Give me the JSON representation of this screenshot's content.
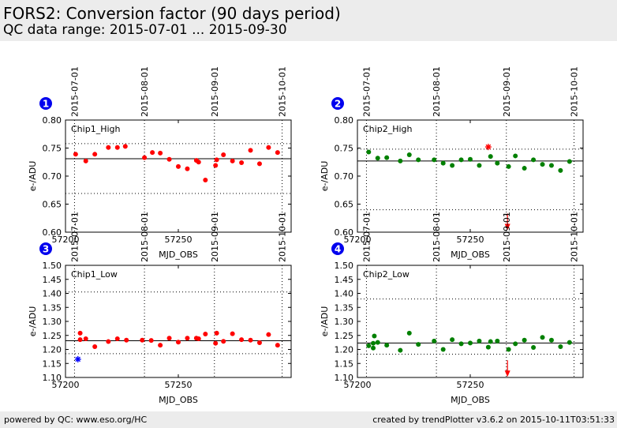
{
  "header": {
    "title": "FORS2: Conversion factor (90 days period)",
    "subtitle": "QC data range: 2015-07-01 ... 2015-09-30"
  },
  "footer": {
    "left": "powered by QC: www.eso.org/HC",
    "right": "created by trendPlotter v3.6.2 on 2015-10-11T03:51:33"
  },
  "colors": {
    "chip1": "#ff0000",
    "chip2": "#008000",
    "badge": "#0000ee",
    "outlier_red": "#ff0000",
    "outlier_blue": "#0000ff"
  },
  "chart_data": [
    {
      "type": "scatter",
      "badge": "1",
      "panel_label": "Chip1_High",
      "xlabel": "MJD_OBS",
      "ylabel": "e-/ADU",
      "xlim": [
        57200,
        57300
      ],
      "ylim": [
        0.6,
        0.8
      ],
      "yticks": [
        0.6,
        0.65,
        0.7,
        0.75,
        0.8
      ],
      "ytick_labels": [
        "0.60",
        "0.65",
        "0.70",
        "0.75",
        "0.80"
      ],
      "xticks": [
        57200,
        57250
      ],
      "xtick_labels": [
        "57200",
        "57250"
      ],
      "date_ticks": [
        {
          "label": "2015-07-01",
          "mjd": 57204
        },
        {
          "label": "2015-08-01",
          "mjd": 57235
        },
        {
          "label": "2015-09-01",
          "mjd": 57266
        },
        {
          "label": "2015-10-01",
          "mjd": 57296
        }
      ],
      "median": 0.731,
      "limits": [
        0.669,
        0.758
      ],
      "points_color": "#ff0000",
      "points": [
        [
          57204.5,
          0.739
        ],
        [
          57209,
          0.727
        ],
        [
          57213,
          0.739
        ],
        [
          57219,
          0.751
        ],
        [
          57223,
          0.751
        ],
        [
          57226.5,
          0.753
        ],
        [
          57235,
          0.733
        ],
        [
          57238.5,
          0.742
        ],
        [
          57242,
          0.741
        ],
        [
          57246,
          0.73
        ],
        [
          57250,
          0.717
        ],
        [
          57254,
          0.713
        ],
        [
          57258,
          0.728
        ],
        [
          57259,
          0.725
        ],
        [
          57262,
          0.693
        ],
        [
          57266.5,
          0.719
        ],
        [
          57267,
          0.729
        ],
        [
          57270,
          0.738
        ],
        [
          57274,
          0.727
        ],
        [
          57278,
          0.724
        ],
        [
          57282,
          0.746
        ],
        [
          57286,
          0.722
        ],
        [
          57290,
          0.751
        ],
        [
          57294,
          0.742
        ]
      ],
      "outliers": []
    },
    {
      "type": "scatter",
      "badge": "2",
      "panel_label": "Chip2_High",
      "xlabel": "MJD_OBS",
      "ylabel": "e-/ADU",
      "xlim": [
        57200,
        57300
      ],
      "ylim": [
        0.6,
        0.8
      ],
      "yticks": [
        0.6,
        0.65,
        0.7,
        0.75,
        0.8
      ],
      "ytick_labels": [
        "0.60",
        "0.65",
        "0.70",
        "0.75",
        "0.80"
      ],
      "xticks": [
        57200,
        57250
      ],
      "xtick_labels": [
        "57200",
        "57250"
      ],
      "date_ticks": [
        {
          "label": "2015-07-01",
          "mjd": 57204
        },
        {
          "label": "2015-08-01",
          "mjd": 57235
        },
        {
          "label": "2015-09-01",
          "mjd": 57266
        },
        {
          "label": "2015-10-01",
          "mjd": 57296
        }
      ],
      "median": 0.727,
      "limits": [
        0.64,
        0.748
      ],
      "points_color": "#008000",
      "points": [
        [
          57205,
          0.743
        ],
        [
          57209,
          0.732
        ],
        [
          57213,
          0.733
        ],
        [
          57219,
          0.727
        ],
        [
          57223,
          0.738
        ],
        [
          57227,
          0.729
        ],
        [
          57234,
          0.729
        ],
        [
          57238,
          0.723
        ],
        [
          57242,
          0.719
        ],
        [
          57246,
          0.729
        ],
        [
          57250,
          0.73
        ],
        [
          57254,
          0.719
        ],
        [
          57259,
          0.735
        ],
        [
          57262,
          0.723
        ],
        [
          57267,
          0.717
        ],
        [
          57270,
          0.736
        ],
        [
          57274,
          0.714
        ],
        [
          57278,
          0.729
        ],
        [
          57282,
          0.721
        ],
        [
          57286,
          0.719
        ],
        [
          57290,
          0.71
        ],
        [
          57294,
          0.726
        ]
      ],
      "outliers": [
        {
          "x": 57258,
          "y": 0.752,
          "marker": "star",
          "color": "#ff0000"
        },
        {
          "x": 57266.5,
          "y": 0.605,
          "marker": "arrow-down",
          "color": "#ff0000"
        }
      ]
    },
    {
      "type": "scatter",
      "badge": "3",
      "panel_label": "Chip1_Low",
      "xlabel": "MJD_OBS",
      "ylabel": "e-/ADU",
      "xlim": [
        57200,
        57300
      ],
      "ylim": [
        1.1,
        1.5
      ],
      "yticks": [
        1.1,
        1.15,
        1.2,
        1.25,
        1.3,
        1.35,
        1.4,
        1.45,
        1.5
      ],
      "ytick_labels": [
        "1.10",
        "1.15",
        "1.20",
        "1.25",
        "1.30",
        "1.35",
        "1.40",
        "1.45",
        "1.50"
      ],
      "xticks": [
        57200,
        57250
      ],
      "xtick_labels": [
        "57200",
        "57250"
      ],
      "date_ticks": [
        {
          "label": "2015-07-01",
          "mjd": 57204
        },
        {
          "label": "2015-08-01",
          "mjd": 57235
        },
        {
          "label": "2015-09-01",
          "mjd": 57266
        },
        {
          "label": "2015-10-01",
          "mjd": 57296
        }
      ],
      "median": 1.231,
      "limits": [
        1.185,
        1.405
      ],
      "points_color": "#ff0000",
      "points": [
        [
          57206.5,
          1.258
        ],
        [
          57206.5,
          1.235
        ],
        [
          57209,
          1.238
        ],
        [
          57213,
          1.21
        ],
        [
          57219,
          1.228
        ],
        [
          57223,
          1.238
        ],
        [
          57227,
          1.233
        ],
        [
          57234,
          1.233
        ],
        [
          57238,
          1.232
        ],
        [
          57242,
          1.215
        ],
        [
          57246,
          1.24
        ],
        [
          57250,
          1.226
        ],
        [
          57254,
          1.24
        ],
        [
          57258,
          1.24
        ],
        [
          57259,
          1.238
        ],
        [
          57262,
          1.255
        ],
        [
          57266.5,
          1.222
        ],
        [
          57267,
          1.258
        ],
        [
          57270,
          1.229
        ],
        [
          57274,
          1.256
        ],
        [
          57278,
          1.235
        ],
        [
          57282,
          1.233
        ],
        [
          57286,
          1.224
        ],
        [
          57290,
          1.253
        ],
        [
          57294,
          1.215
        ]
      ],
      "outliers": [
        {
          "x": 57205.5,
          "y": 1.165,
          "marker": "star",
          "color": "#0000ff"
        }
      ]
    },
    {
      "type": "scatter",
      "badge": "4",
      "panel_label": "Chip2_Low",
      "xlabel": "MJD_OBS",
      "ylabel": "e-/ADU",
      "xlim": [
        57200,
        57300
      ],
      "ylim": [
        1.1,
        1.5
      ],
      "yticks": [
        1.1,
        1.15,
        1.2,
        1.25,
        1.3,
        1.35,
        1.4,
        1.45,
        1.5
      ],
      "ytick_labels": [
        "1.10",
        "1.15",
        "1.20",
        "1.25",
        "1.30",
        "1.35",
        "1.40",
        "1.45",
        "1.50"
      ],
      "xticks": [
        57200,
        57250
      ],
      "xtick_labels": [
        "57200",
        "57250"
      ],
      "date_ticks": [
        {
          "label": "2015-07-01",
          "mjd": 57204
        },
        {
          "label": "2015-08-01",
          "mjd": 57235
        },
        {
          "label": "2015-09-01",
          "mjd": 57266
        },
        {
          "label": "2015-10-01",
          "mjd": 57296
        }
      ],
      "median": 1.223,
      "limits": [
        1.183,
        1.38
      ],
      "points_color": "#008000",
      "points": [
        [
          57205,
          1.213
        ],
        [
          57207,
          1.205
        ],
        [
          57207,
          1.222
        ],
        [
          57207.5,
          1.248
        ],
        [
          57209,
          1.225
        ],
        [
          57213,
          1.215
        ],
        [
          57219,
          1.197
        ],
        [
          57223,
          1.258
        ],
        [
          57227,
          1.218
        ],
        [
          57234,
          1.23
        ],
        [
          57238,
          1.2
        ],
        [
          57242,
          1.235
        ],
        [
          57246,
          1.22
        ],
        [
          57250,
          1.223
        ],
        [
          57254,
          1.23
        ],
        [
          57258,
          1.208
        ],
        [
          57259,
          1.228
        ],
        [
          57262,
          1.23
        ],
        [
          57267,
          1.2
        ],
        [
          57270,
          1.22
        ],
        [
          57274,
          1.233
        ],
        [
          57278,
          1.207
        ],
        [
          57282,
          1.243
        ],
        [
          57286,
          1.233
        ],
        [
          57290,
          1.21
        ],
        [
          57294,
          1.225
        ]
      ],
      "outliers": [
        {
          "x": 57266.5,
          "y": 1.105,
          "marker": "arrow-down",
          "color": "#ff0000"
        }
      ]
    }
  ]
}
